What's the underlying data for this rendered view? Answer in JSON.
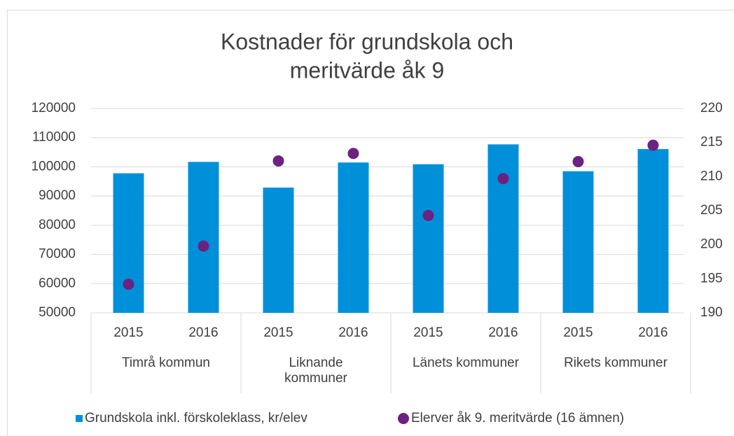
{
  "chart_data": {
    "type": "bar",
    "title": [
      "Kostnader för grundskola och",
      "meritvärde åk 9"
    ],
    "categories": [
      "2015",
      "2016",
      "2015",
      "2016",
      "2015",
      "2016",
      "2015",
      "2016"
    ],
    "groups": [
      "Timrå kommun",
      "Liknande kommuner",
      "Länets kommuner",
      "Rikets kommuner"
    ],
    "series": [
      {
        "name": "Grundskola inkl. förskoleklass, kr/elev",
        "type": "bar",
        "color": "#0090da",
        "values": [
          97800,
          101700,
          92900,
          101500,
          100900,
          107700,
          98500,
          106100
        ]
      },
      {
        "name": "Elerver åk 9. meritvärde (16 ämnen)",
        "type": "scatter",
        "axis": "y2",
        "color": "#6b2281",
        "values": [
          194.2,
          199.8,
          212.3,
          213.4,
          204.3,
          209.7,
          212.2,
          214.6
        ]
      }
    ],
    "ylim": [
      50000,
      120000
    ],
    "yticks": [
      50000,
      60000,
      70000,
      80000,
      90000,
      100000,
      110000,
      120000
    ],
    "y2lim": [
      190,
      220
    ],
    "y2ticks": [
      190,
      195,
      200,
      205,
      210,
      215,
      220
    ],
    "grid": true,
    "legend": "bottom"
  }
}
